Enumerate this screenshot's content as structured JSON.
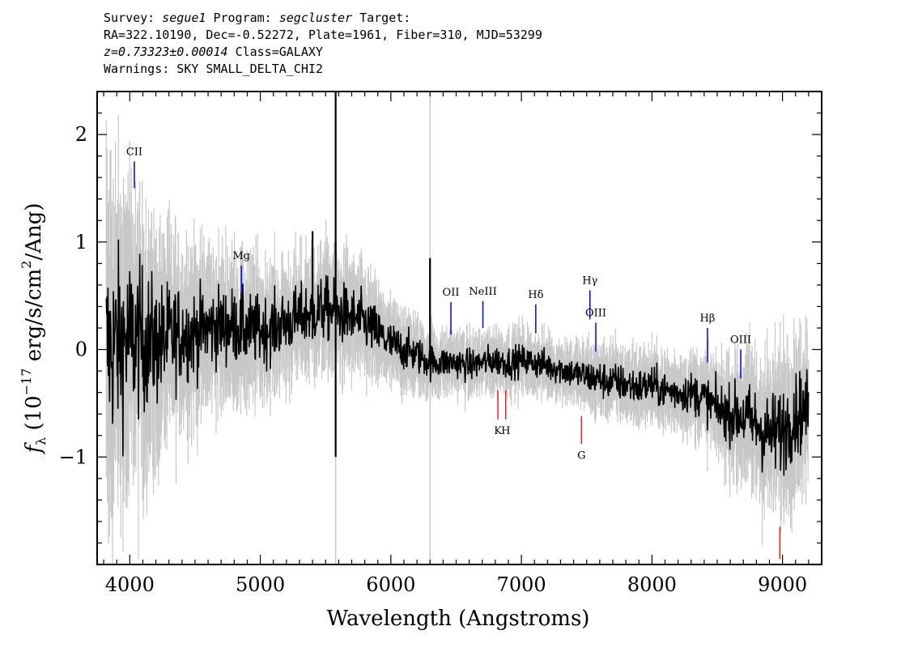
{
  "header": {
    "line1": {
      "survey_label": "Survey:",
      "survey_value": "segue1",
      "program_label": "Program:",
      "program_value": "segcluster",
      "target_label": "Target:"
    },
    "line2": "RA=322.10190, Dec=-0.52272, Plate=1961, Fiber=310, MJD=53299",
    "line3": {
      "redshift": "z=0.73323±0.00014",
      "class": "Class=GALAXY"
    },
    "line4": "Warnings: SKY SMALL_DELTA_CHI2"
  },
  "chart_data": {
    "type": "line",
    "xlabel": "Wavelength (Angstroms)",
    "ylabel": "f_λ (10^-17 erg/s/cm^2/Ang)",
    "xlim": [
      3750,
      9300
    ],
    "ylim": [
      -2.0,
      2.4
    ],
    "x_ticks": [
      4000,
      5000,
      6000,
      7000,
      8000,
      9000
    ],
    "y_ticks": [
      -1,
      0,
      1,
      2
    ],
    "series": [
      {
        "role": "flux",
        "color": "#000000",
        "x": [
          3820,
          3900,
          4000,
          4100,
          4200,
          4300,
          4400,
          4500,
          4600,
          4700,
          4800,
          4900,
          5000,
          5100,
          5200,
          5300,
          5400,
          5500,
          5580,
          5700,
          5800,
          5900,
          6000,
          6100,
          6200,
          6300,
          6400,
          6500,
          6600,
          6700,
          6800,
          6900,
          7000,
          7100,
          7200,
          7300,
          7400,
          7500,
          7600,
          7700,
          7800,
          7900,
          8000,
          8100,
          8200,
          8300,
          8400,
          8500,
          8600,
          8700,
          8800,
          8900,
          9000,
          9100,
          9200
        ],
        "y": [
          0.0,
          0.05,
          0.1,
          0.1,
          0.05,
          0.1,
          0.15,
          0.15,
          0.2,
          0.22,
          0.22,
          0.18,
          0.18,
          0.2,
          0.25,
          0.3,
          0.35,
          0.38,
          0.35,
          0.3,
          0.25,
          0.15,
          0.05,
          0.0,
          -0.05,
          -0.12,
          -0.12,
          -0.12,
          -0.15,
          -0.12,
          -0.1,
          -0.12,
          -0.1,
          -0.12,
          -0.15,
          -0.18,
          -0.22,
          -0.25,
          -0.28,
          -0.3,
          -0.32,
          -0.35,
          -0.33,
          -0.38,
          -0.4,
          -0.4,
          -0.45,
          -0.55,
          -0.6,
          -0.62,
          -0.7,
          -0.8,
          -0.75,
          -0.6,
          -0.55
        ]
      },
      {
        "role": "noise-envelope",
        "color": "#c8c8c8",
        "x": [
          3820,
          4000,
          4200,
          4400,
          4600,
          4800,
          5000,
          5200,
          5400,
          5600,
          5800,
          6000,
          6200,
          6400,
          6600,
          6800,
          7000,
          7200,
          7400,
          7600,
          7800,
          8000,
          8200,
          8400,
          8600,
          8800,
          9000,
          9200
        ],
        "sigma": [
          1.6,
          1.3,
          1.0,
          0.75,
          0.65,
          0.6,
          0.55,
          0.5,
          0.5,
          0.5,
          0.45,
          0.35,
          0.3,
          0.25,
          0.25,
          0.25,
          0.25,
          0.25,
          0.25,
          0.3,
          0.3,
          0.3,
          0.3,
          0.35,
          0.45,
          0.6,
          0.7,
          0.6
        ]
      }
    ],
    "sky_residual_spikes": [
      {
        "x": 5577,
        "flux": 2.4,
        "min": -1.0,
        "sky_top": 2.4,
        "sky_bottom": -2.0
      },
      {
        "x": 6300,
        "flux": 0.85,
        "min": -0.15,
        "sky_top": 2.4,
        "sky_bottom": -2.0
      },
      {
        "x": 5400,
        "flux": 1.1,
        "min": 0.1
      },
      {
        "x": 8860,
        "flux": -2.0,
        "min": -2.0
      }
    ],
    "emission_lines": [
      {
        "label": "CII",
        "x": 4035,
        "y0": 1.5,
        "y1": 1.75
      },
      {
        "label": "Mg",
        "x": 4855,
        "y0": 0.52,
        "y1": 0.78
      },
      {
        "label": "OII",
        "x": 6460,
        "y0": 0.14,
        "y1": 0.44
      },
      {
        "label": "NeIII",
        "x": 6705,
        "y0": 0.2,
        "y1": 0.45
      },
      {
        "label": "Hδ",
        "x": 7110,
        "y0": 0.15,
        "y1": 0.42
      },
      {
        "label": "Hγ",
        "x": 7525,
        "y0": 0.28,
        "y1": 0.55
      },
      {
        "label": "OIII",
        "x": 7570,
        "y0": -0.02,
        "y1": 0.25
      },
      {
        "label": "Hβ",
        "x": 8425,
        "y0": -0.12,
        "y1": 0.2
      },
      {
        "label": "OIII",
        "x": 8680,
        "y0": -0.27,
        "y1": 0.0
      }
    ],
    "absorption_lines": [
      {
        "label": "K",
        "x": 6820,
        "y0": -0.38,
        "y1": -0.65
      },
      {
        "label": "H",
        "x": 6880,
        "y0": -0.38,
        "y1": -0.65
      },
      {
        "label": "G",
        "x": 7460,
        "y0": -0.62,
        "y1": -0.88
      },
      {
        "label": "",
        "x": 8980,
        "y0": -1.65,
        "y1": -1.95
      }
    ],
    "line_colors": {
      "emission": "#0000ff",
      "absorption": "#ff0000"
    },
    "grid": false,
    "legend": "none"
  }
}
